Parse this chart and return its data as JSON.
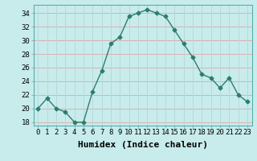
{
  "x": [
    0,
    1,
    2,
    3,
    4,
    5,
    6,
    7,
    8,
    9,
    10,
    11,
    12,
    13,
    14,
    15,
    16,
    17,
    18,
    19,
    20,
    21,
    22,
    23
  ],
  "y": [
    20,
    21.5,
    20,
    19.5,
    18,
    18,
    22.5,
    25.5,
    29.5,
    30.5,
    33.5,
    34,
    34.5,
    34,
    33.5,
    31.5,
    29.5,
    27.5,
    25,
    24.5,
    23,
    24.5,
    22,
    21
  ],
  "line_color": "#2e7d6e",
  "marker": "D",
  "marker_size": 2.5,
  "bg_color": "#c8ecec",
  "grid_color_h": "#d8b0b0",
  "grid_color_v": "#b8d8d8",
  "xlabel": "Humidex (Indice chaleur)",
  "xlabel_fontsize": 8,
  "yticks": [
    18,
    20,
    22,
    24,
    26,
    28,
    30,
    32,
    34
  ],
  "xtick_labels": [
    "0",
    "1",
    "2",
    "3",
    "4",
    "5",
    "6",
    "7",
    "8",
    "9",
    "10",
    "11",
    "12",
    "13",
    "14",
    "15",
    "16",
    "17",
    "18",
    "19",
    "20",
    "21",
    "22",
    "23"
  ],
  "ylim": [
    17.5,
    35.2
  ],
  "xlim": [
    -0.5,
    23.5
  ],
  "tick_fontsize": 6.5,
  "line_width": 1.0
}
